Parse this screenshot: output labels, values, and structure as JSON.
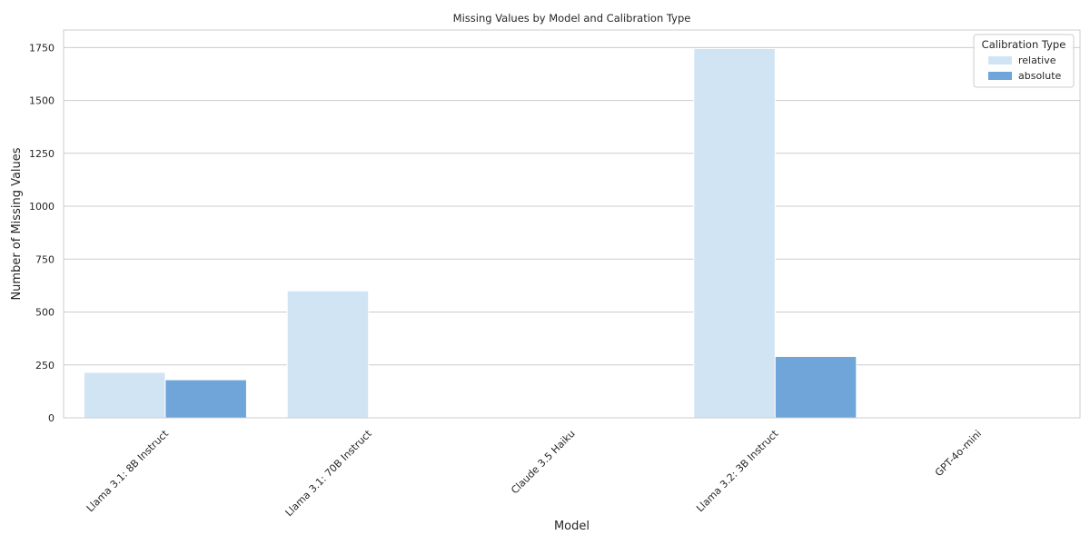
{
  "chart_data": {
    "type": "bar",
    "title": "Missing Values by Model and Calibration Type",
    "xlabel": "Model",
    "ylabel": "Number of Missing Values",
    "categories": [
      "Llama 3.1: 8B Instruct",
      "Llama 3.1: 70B Instruct",
      "Claude 3.5 Haiku",
      "Llama 3.2: 3B Instruct",
      "GPT-4o-mini"
    ],
    "series": [
      {
        "name": "relative",
        "values": [
          215,
          600,
          0,
          1745,
          0
        ],
        "color": "#d0e4f4"
      },
      {
        "name": "absolute",
        "values": [
          180,
          0,
          0,
          290,
          0
        ],
        "color": "#6fa5d8"
      }
    ],
    "ylim": [
      0,
      1833
    ],
    "yticks": [
      0,
      250,
      500,
      750,
      1000,
      1250,
      1500,
      1750
    ],
    "grid": true,
    "legend": {
      "title": "Calibration Type",
      "position": "top-right"
    }
  }
}
